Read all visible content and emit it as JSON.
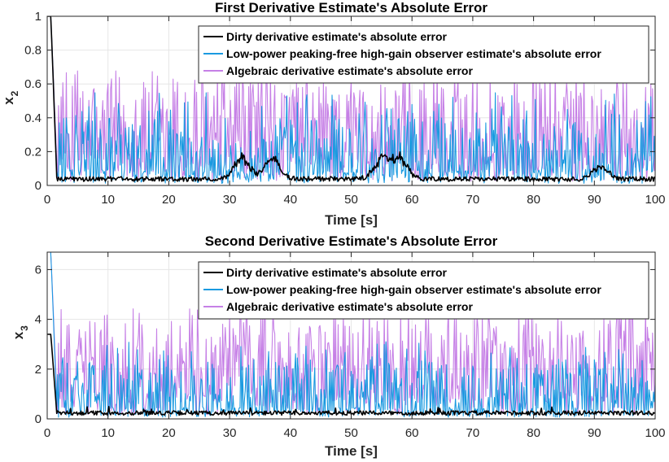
{
  "chart_data": [
    {
      "type": "line",
      "title": "First Derivative Estimate's Absolute Error",
      "xlabel": "Time [s]",
      "ylabel": "x",
      "ylabel_subscript": "2",
      "xlim": [
        0,
        100
      ],
      "ylim": [
        0,
        1.0
      ],
      "xticks": [
        "0",
        "10",
        "20",
        "30",
        "40",
        "50",
        "60",
        "70",
        "80",
        "90",
        "100"
      ],
      "yticks": [
        "0",
        "0.2",
        "0.4",
        "0.6",
        "0.8",
        "1"
      ],
      "grid": true,
      "legend_position": "top-right",
      "series": [
        {
          "name": "Algebraic derivative estimate's absolute error",
          "color": "#c680e6",
          "initial_peak": 1.0,
          "base": 0.25,
          "typical_peak": 0.6,
          "max_peak": 0.7
        },
        {
          "name": "Low-power peaking-free high-gain observer estimate's absolute error",
          "color": "#1a9ae0",
          "initial_peak": 1.0,
          "base": 0.12,
          "typical_peak": 0.4,
          "max_peak": 0.55
        },
        {
          "name": "Dirty derivative estimate's absolute error",
          "color": "#000000",
          "initial_peak": 1.0,
          "base": 0.04,
          "bumps": [
            {
              "x": 32,
              "y": 0.17
            },
            {
              "x": 37,
              "y": 0.17
            },
            {
              "x": 55,
              "y": 0.17
            },
            {
              "x": 58,
              "y": 0.17
            },
            {
              "x": 91,
              "y": 0.12
            }
          ]
        }
      ]
    },
    {
      "type": "line",
      "title": "Second Derivative Estimate's Absolute Error",
      "xlabel": "Time [s]",
      "ylabel": "x",
      "ylabel_subscript": "3",
      "xlim": [
        0,
        100
      ],
      "ylim": [
        0,
        6.7
      ],
      "xticks": [
        "0",
        "10",
        "20",
        "30",
        "40",
        "50",
        "60",
        "70",
        "80",
        "90",
        "100"
      ],
      "yticks": [
        "0",
        "2",
        "4",
        "6"
      ],
      "grid": true,
      "legend_position": "top-right",
      "series": [
        {
          "name": "Algebraic derivative estimate's absolute error",
          "color": "#c680e6",
          "initial_peak": 6.7,
          "base": 1.7,
          "typical_peak": 3.8,
          "max_peak": 4.5
        },
        {
          "name": "Low-power peaking-free high-gain observer estimate's absolute error",
          "color": "#1a9ae0",
          "initial_peak": 6.7,
          "base": 0.6,
          "typical_peak": 2.3,
          "max_peak": 3.1
        },
        {
          "name": "Dirty derivative estimate's absolute error",
          "color": "#000000",
          "initial_peak": 3.4,
          "base": 0.25,
          "max_peak": 0.5
        }
      ]
    }
  ],
  "legend_order": [
    2,
    1,
    0
  ]
}
